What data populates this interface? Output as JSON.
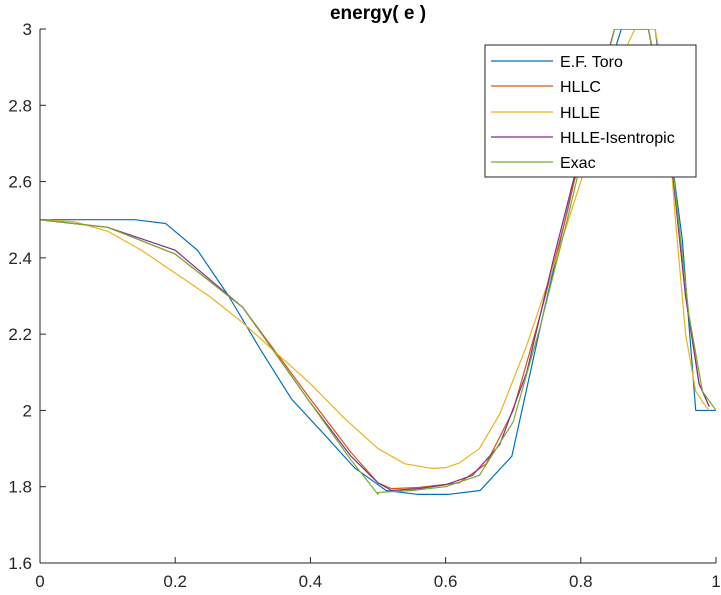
{
  "chart_data": {
    "type": "line",
    "title": "energy( e )",
    "xlabel": "",
    "ylabel": "",
    "xlim": [
      0,
      1
    ],
    "ylim": [
      1.6,
      3
    ],
    "xticks": [
      "0",
      "0.2",
      "0.4",
      "0.6",
      "0.8",
      "1"
    ],
    "yticks": [
      "1.6",
      "1.8",
      "2",
      "2.2",
      "2.4",
      "2.6",
      "2.8",
      "3"
    ],
    "grid": false,
    "legend_position": "top-right",
    "series": [
      {
        "name": "E.F. Toro",
        "color": "#0072BD",
        "x": [
          0,
          0.14,
          0.186,
          0.233,
          0.279,
          0.326,
          0.372,
          0.419,
          0.465,
          0.512,
          0.558,
          0.605,
          0.651,
          0.698,
          0.744,
          0.79,
          0.81,
          0.86,
          0.91,
          0.93,
          0.95,
          0.97,
          1.0
        ],
        "y": [
          2.5,
          2.5,
          2.49,
          2.42,
          2.3,
          2.16,
          2.03,
          1.94,
          1.85,
          1.79,
          1.78,
          1.78,
          1.79,
          1.88,
          2.25,
          2.6,
          2.72,
          3.0,
          3.0,
          2.72,
          2.45,
          2.0,
          2.0
        ]
      },
      {
        "name": "HLLC",
        "color": "#D95319",
        "x": [
          0,
          0.1,
          0.2,
          0.3,
          0.4,
          0.46,
          0.5,
          0.52,
          0.56,
          0.62,
          0.66,
          0.7,
          0.74,
          0.78,
          0.8,
          0.85,
          0.9,
          0.93,
          0.955,
          0.975,
          0.99
        ],
        "y": [
          2.5,
          2.48,
          2.41,
          2.27,
          2.03,
          1.89,
          1.81,
          1.795,
          1.798,
          1.81,
          1.86,
          2.0,
          2.25,
          2.52,
          2.68,
          3.0,
          3.0,
          2.72,
          2.3,
          2.07,
          2.01
        ]
      },
      {
        "name": "HLLE",
        "color": "#EDB120",
        "x": [
          0,
          0.05,
          0.1,
          0.15,
          0.2,
          0.25,
          0.3,
          0.35,
          0.4,
          0.45,
          0.5,
          0.54,
          0.58,
          0.6,
          0.62,
          0.65,
          0.68,
          0.72,
          0.76,
          0.8,
          0.84,
          0.88,
          0.91,
          0.925,
          0.94,
          0.955,
          0.97,
          0.985,
          0.99
        ],
        "y": [
          2.5,
          2.495,
          2.47,
          2.42,
          2.36,
          2.3,
          2.23,
          2.15,
          2.07,
          1.98,
          1.9,
          1.86,
          1.848,
          1.85,
          1.862,
          1.9,
          1.99,
          2.17,
          2.38,
          2.6,
          2.85,
          3.0,
          3.0,
          2.85,
          2.5,
          2.2,
          2.05,
          2.01,
          2.0
        ]
      },
      {
        "name": "HLLE-Isentropic",
        "color": "#7E2F8E",
        "x": [
          0,
          0.1,
          0.2,
          0.3,
          0.4,
          0.46,
          0.5,
          0.52,
          0.56,
          0.6,
          0.64,
          0.68,
          0.72,
          0.76,
          0.8,
          0.85,
          0.9,
          0.93,
          0.955,
          0.975,
          0.99
        ],
        "y": [
          2.5,
          2.48,
          2.42,
          2.27,
          2.02,
          1.88,
          1.81,
          1.79,
          1.795,
          1.805,
          1.83,
          1.91,
          2.1,
          2.4,
          2.68,
          3.0,
          3.0,
          2.72,
          2.3,
          2.07,
          2.01
        ]
      },
      {
        "name": "Exac",
        "color": "#77AC30",
        "x": [
          0,
          0.1,
          0.2,
          0.3,
          0.4,
          0.46,
          0.5,
          0.5,
          0.55,
          0.6,
          0.65,
          0.7,
          0.74,
          0.78,
          0.8,
          0.85,
          0.9,
          0.935,
          0.935,
          0.96,
          0.98,
          1.0
        ],
        "y": [
          2.5,
          2.48,
          2.41,
          2.27,
          2.02,
          1.87,
          1.78,
          1.785,
          1.79,
          1.8,
          1.83,
          1.97,
          2.22,
          2.5,
          2.65,
          3.0,
          3.0,
          2.7,
          2.65,
          2.25,
          2.05,
          2.0
        ]
      }
    ]
  }
}
